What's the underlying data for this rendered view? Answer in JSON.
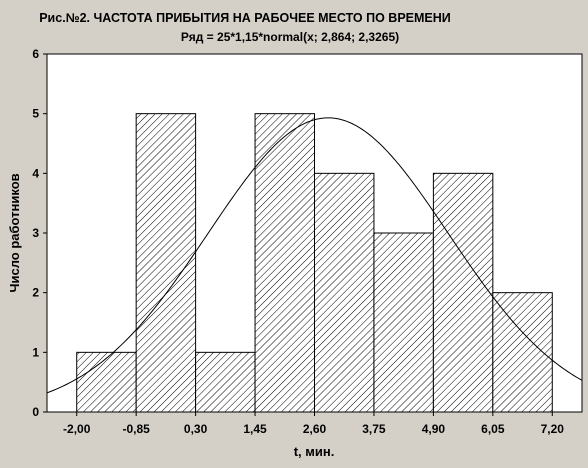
{
  "chart_data": {
    "type": "bar",
    "title": "Рис.№2. ЧАСТОТА ПРИБЫТИЯ НА РАБОЧЕЕ МЕСТО ПО ВРЕМЕНИ",
    "subtitle": "Ряд = 25*1,15*normal(x; 2,864; 2,3265)",
    "xlabel": "t, мин.",
    "ylabel": "Число работников",
    "x_ticks": [
      "-2,00",
      "-0,85",
      "0,30",
      "1,45",
      "2,60",
      "3,75",
      "4,90",
      "6,05",
      "7,20"
    ],
    "y_ticks": [
      "0",
      "1",
      "2",
      "3",
      "4",
      "5",
      "6"
    ],
    "xlim": [
      -2.575,
      7.775
    ],
    "ylim": [
      0,
      6
    ],
    "bins": [
      {
        "from": -2.0,
        "to": -0.85,
        "value": 1
      },
      {
        "from": -0.85,
        "to": 0.3,
        "value": 5
      },
      {
        "from": 0.3,
        "to": 1.45,
        "value": 1
      },
      {
        "from": 1.45,
        "to": 2.6,
        "value": 5
      },
      {
        "from": 2.6,
        "to": 3.75,
        "value": 4
      },
      {
        "from": 3.75,
        "to": 4.9,
        "value": 3
      },
      {
        "from": 4.9,
        "to": 6.05,
        "value": 4
      },
      {
        "from": 6.05,
        "to": 7.2,
        "value": 2
      }
    ],
    "normal_curve": {
      "n": 25,
      "bin_width": 1.15,
      "mean": 2.864,
      "sd": 2.3265
    },
    "bar_fill": "hatched",
    "grid": false,
    "background_color": "#d4d0c8",
    "plot_background_color": "#ffffff"
  }
}
